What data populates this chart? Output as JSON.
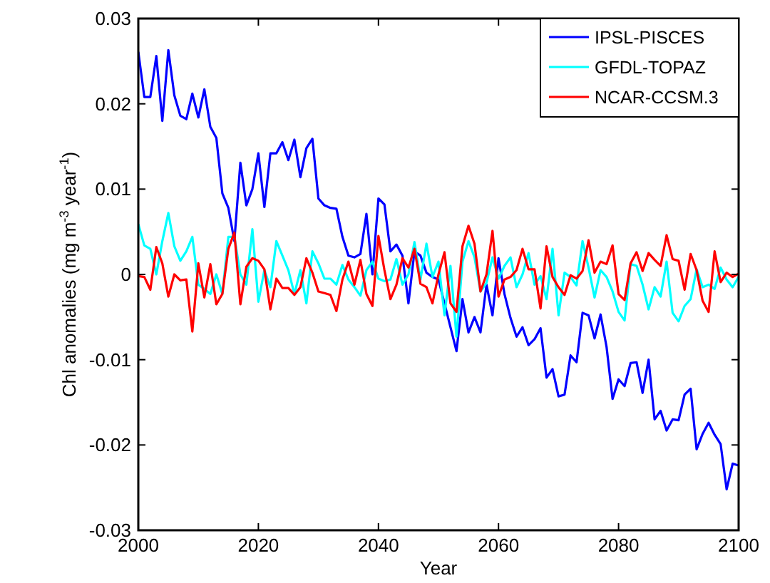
{
  "chart_data": {
    "type": "line",
    "xlabel": "Year",
    "ylabel": "Chl anomalies (mg m$^{-3}$ year$^{-1}$)",
    "x": [
      2000,
      2001,
      2002,
      2003,
      2004,
      2005,
      2006,
      2007,
      2008,
      2009,
      2010,
      2011,
      2012,
      2013,
      2014,
      2015,
      2016,
      2017,
      2018,
      2019,
      2020,
      2021,
      2022,
      2023,
      2024,
      2025,
      2026,
      2027,
      2028,
      2029,
      2030,
      2031,
      2032,
      2033,
      2034,
      2035,
      2036,
      2037,
      2038,
      2039,
      2040,
      2041,
      2042,
      2043,
      2044,
      2045,
      2046,
      2047,
      2048,
      2049,
      2050,
      2051,
      2052,
      2053,
      2054,
      2055,
      2056,
      2057,
      2058,
      2059,
      2060,
      2061,
      2062,
      2063,
      2064,
      2065,
      2066,
      2067,
      2068,
      2069,
      2070,
      2071,
      2072,
      2073,
      2074,
      2075,
      2076,
      2077,
      2078,
      2079,
      2080,
      2081,
      2082,
      2083,
      2084,
      2085,
      2086,
      2087,
      2088,
      2089,
      2090,
      2091,
      2092,
      2093,
      2094,
      2095,
      2096,
      2097,
      2098,
      2099,
      2100
    ],
    "xlim": [
      2000,
      2100
    ],
    "xticks": [
      2000,
      2020,
      2040,
      2060,
      2080,
      2100
    ],
    "ylim": [
      -0.03,
      0.03
    ],
    "yticks": [
      -0.03,
      -0.02,
      -0.01,
      0,
      0.01,
      0.02,
      0.03
    ],
    "legend": "top right",
    "grid": false,
    "line_style": "solid",
    "marker": "none",
    "series": [
      {
        "name": "IPSL-PISCES",
        "color": "#0000ff",
        "values": [
          0.0261,
          0.0208,
          0.0208,
          0.0256,
          0.018,
          0.0263,
          0.021,
          0.0186,
          0.0182,
          0.0212,
          0.0184,
          0.0217,
          0.0173,
          0.016,
          0.0095,
          0.0078,
          0.0039,
          0.0131,
          0.0081,
          0.01,
          0.0142,
          0.0079,
          0.0142,
          0.0142,
          0.0155,
          0.0134,
          0.0158,
          0.0114,
          0.0148,
          0.0159,
          0.0089,
          0.0081,
          0.0078,
          0.0077,
          0.0044,
          0.0022,
          0.002,
          0.0024,
          0.0071,
          0.0,
          0.0089,
          0.0082,
          0.0027,
          0.0035,
          0.0022,
          -0.0034,
          0.0027,
          0.0022,
          0.0002,
          -0.0003,
          -0.0006,
          -0.0034,
          -0.0062,
          -0.009,
          -0.0029,
          -0.0068,
          -0.005,
          -0.0068,
          -0.0012,
          -0.0048,
          0.0019,
          -0.0023,
          -0.0051,
          -0.0073,
          -0.0062,
          -0.0083,
          -0.0076,
          -0.0063,
          -0.0121,
          -0.0111,
          -0.0143,
          -0.0141,
          -0.0095,
          -0.0103,
          -0.0045,
          -0.0048,
          -0.0075,
          -0.0047,
          -0.0085,
          -0.0146,
          -0.0123,
          -0.0131,
          -0.0104,
          -0.0103,
          -0.0139,
          -0.01,
          -0.017,
          -0.016,
          -0.0183,
          -0.017,
          -0.0171,
          -0.0141,
          -0.0134,
          -0.0205,
          -0.0187,
          -0.0174,
          -0.0188,
          -0.0199,
          -0.0252,
          -0.0222,
          -0.0224
        ]
      },
      {
        "name": "GFDL-TOPAZ",
        "color": "#00ffff",
        "values": [
          0.0059,
          0.0034,
          0.003,
          0.0,
          0.0039,
          0.0072,
          0.0033,
          0.0016,
          0.0027,
          0.0044,
          -0.0012,
          -0.0017,
          -0.0023,
          0.0,
          -0.0023,
          0.0044,
          0.0044,
          0.0,
          -0.0012,
          0.0053,
          -0.0032,
          0.0005,
          -0.0015,
          0.0039,
          0.0022,
          0.0005,
          -0.0023,
          0.0005,
          -0.0034,
          0.0027,
          0.0013,
          -0.0005,
          -0.0005,
          -0.0012,
          0.0011,
          -0.0006,
          -0.0015,
          -0.0025,
          0.0005,
          0.0015,
          -0.0005,
          -0.0008,
          -0.0006,
          0.0018,
          -0.0012,
          0.0,
          0.0038,
          -0.0006,
          0.0036,
          -0.0003,
          0.0015,
          -0.0048,
          0.001,
          -0.0073,
          0.0015,
          0.0039,
          0.002,
          -0.002,
          -0.001,
          0.002,
          -0.0005,
          0.001,
          0.002,
          -0.0015,
          0.0,
          0.0025,
          -0.0012,
          -0.0002,
          -0.0029,
          0.003,
          -0.0048,
          0.0002,
          -0.0003,
          -0.0013,
          0.0039,
          0.0008,
          -0.0027,
          0.0005,
          -0.0003,
          -0.002,
          -0.0044,
          -0.0054,
          0.0012,
          0.001,
          -0.0012,
          -0.0041,
          -0.0015,
          -0.0026,
          0.0015,
          -0.0045,
          -0.0055,
          -0.0037,
          -0.0029,
          0.0006,
          -0.0015,
          -0.0012,
          -0.0017,
          0.0008,
          -0.0006,
          -0.0015,
          -0.0003
        ]
      },
      {
        "name": "NCAR-CCSM.3",
        "color": "#ff0000",
        "values": [
          -0.0002,
          -0.0003,
          -0.0018,
          0.0032,
          0.0013,
          -0.0026,
          0.0,
          -0.0007,
          -0.0006,
          -0.0067,
          0.0013,
          -0.0027,
          0.0012,
          -0.0035,
          -0.0023,
          0.003,
          0.0049,
          -0.0035,
          0.0009,
          0.0019,
          0.0016,
          0.0006,
          -0.0041,
          -0.0005,
          -0.0016,
          -0.0016,
          -0.0024,
          -0.0015,
          0.0019,
          0.0002,
          -0.002,
          -0.0022,
          -0.0024,
          -0.0043,
          -0.0006,
          0.0015,
          -0.0012,
          0.0017,
          -0.0023,
          -0.0037,
          0.0045,
          0.0005,
          -0.0029,
          -0.0012,
          0.0019,
          0.0008,
          0.003,
          -0.0011,
          -0.0015,
          -0.0034,
          0.0,
          0.0026,
          -0.0034,
          -0.0044,
          0.0033,
          0.0057,
          0.0036,
          -0.002,
          0.0,
          0.0051,
          -0.0026,
          -0.0006,
          -0.0003,
          0.0005,
          0.003,
          0.0006,
          0.0006,
          -0.004,
          0.0033,
          -0.0003,
          -0.0015,
          -0.0024,
          -0.0001,
          -0.0005,
          0.0004,
          0.004,
          0.0002,
          0.0015,
          0.0012,
          0.0034,
          -0.0023,
          -0.003,
          0.0013,
          0.0026,
          0.0004,
          0.0025,
          0.0017,
          0.001,
          0.0046,
          0.0018,
          0.0016,
          -0.0018,
          0.0024,
          0.0005,
          -0.0031,
          -0.0044,
          0.0027,
          -0.0009,
          0.0002,
          -0.0003,
          0.0001
        ]
      }
    ]
  }
}
